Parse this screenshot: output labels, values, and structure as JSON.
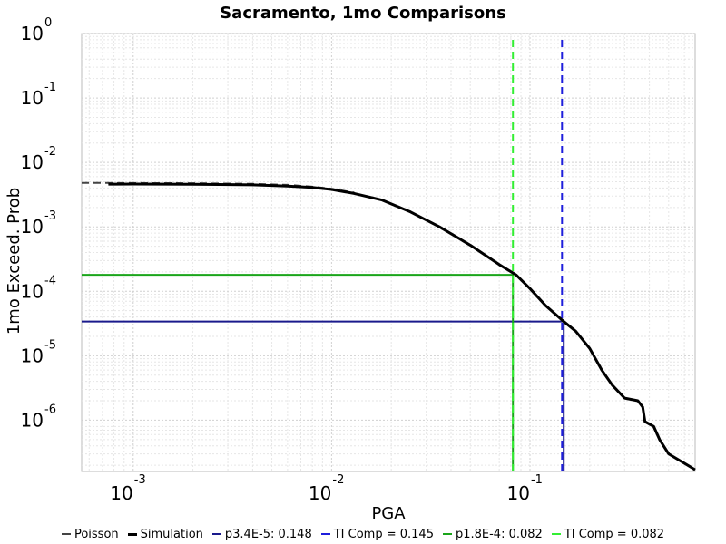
{
  "chart_data": {
    "type": "line",
    "title": "Sacramento, 1mo Comparisons",
    "xlabel": "PGA",
    "ylabel": "1mo Exceed. Prob",
    "x_scale": "log",
    "y_scale": "log",
    "xlim": [
      0.00055,
      0.68
    ],
    "ylim": [
      1.6e-07,
      1.0
    ],
    "x_ticks": [
      {
        "base": "10",
        "exp": "-3",
        "value": 0.001
      },
      {
        "base": "10",
        "exp": "-2",
        "value": 0.01
      },
      {
        "base": "10",
        "exp": "-1",
        "value": 0.1
      }
    ],
    "y_ticks": [
      {
        "base": "10",
        "exp": "0",
        "value": 1
      },
      {
        "base": "10",
        "exp": "-1",
        "value": 0.1
      },
      {
        "base": "10",
        "exp": "-2",
        "value": 0.01
      },
      {
        "base": "10",
        "exp": "-3",
        "value": 0.001
      },
      {
        "base": "10",
        "exp": "-4",
        "value": 0.0001
      },
      {
        "base": "10",
        "exp": "-5",
        "value": 1e-05
      },
      {
        "base": "10",
        "exp": "-6",
        "value": 1e-06
      }
    ],
    "grid": true,
    "legend_position": "bottom",
    "series": [
      {
        "name": "Poisson",
        "color": "#444444",
        "dash": "dashed",
        "width": 2,
        "x": [
          0.00055,
          0.0007,
          0.001,
          0.002,
          0.004,
          0.006,
          0.008,
          0.01,
          0.013
        ],
        "y": [
          0.0048,
          0.0048,
          0.00479,
          0.00475,
          0.00465,
          0.00448,
          0.0042,
          0.0039,
          0.0034
        ]
      },
      {
        "name": "Simulation",
        "color": "#000000",
        "dash": "solid",
        "width": 3,
        "x": [
          0.00075,
          0.001,
          0.002,
          0.004,
          0.006,
          0.008,
          0.01,
          0.013,
          0.018,
          0.025,
          0.035,
          0.05,
          0.07,
          0.085,
          0.1,
          0.12,
          0.148,
          0.17,
          0.2,
          0.23,
          0.26,
          0.3,
          0.35,
          0.37,
          0.38,
          0.42,
          0.45,
          0.5,
          0.68
        ],
        "y": [
          0.0046,
          0.00462,
          0.00458,
          0.00448,
          0.0043,
          0.0041,
          0.0038,
          0.0033,
          0.0026,
          0.0017,
          0.001,
          0.00052,
          0.00026,
          0.00018,
          0.00011,
          6e-05,
          3.4e-05,
          2.4e-05,
          1.3e-05,
          6e-06,
          3.5e-06,
          2.2e-06,
          2e-06,
          1.6e-06,
          9.5e-07,
          8e-07,
          5e-07,
          3e-07,
          1.7e-07
        ]
      },
      {
        "name": "p3.4E-5: 0.148",
        "color": "#1a1a8c",
        "dash": "solid",
        "width": 2,
        "x": [
          0.00055,
          0.148,
          0.148
        ],
        "y": [
          3.4e-05,
          3.4e-05,
          1.6e-07
        ]
      },
      {
        "name": "TI Comp = 0.145",
        "color": "#1e1edc",
        "dash": "dashed",
        "width": 2,
        "x": [
          0.145,
          0.145
        ],
        "y": [
          1.6e-07,
          0.9
        ]
      },
      {
        "name": "p1.8E-4: 0.082",
        "color": "#1aa51a",
        "dash": "solid",
        "width": 2,
        "x": [
          0.00055,
          0.082,
          0.082
        ],
        "y": [
          0.00018,
          0.00018,
          1.6e-07
        ]
      },
      {
        "name": "TI Comp = 0.082",
        "color": "#33ee33",
        "dash": "dashed",
        "width": 2,
        "x": [
          0.082,
          0.082
        ],
        "y": [
          1.6e-07,
          0.9
        ]
      }
    ]
  }
}
